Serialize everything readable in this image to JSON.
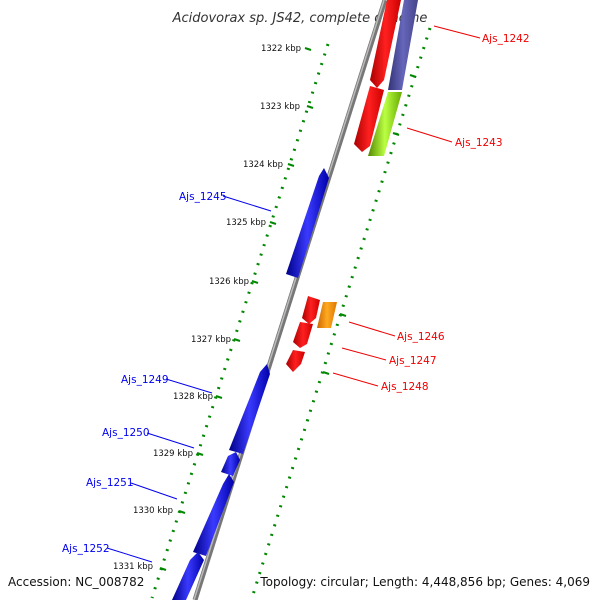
{
  "title": "Acidovorax sp. JS42, complete genome",
  "accession": "Accession: NC_008782",
  "summary": "Topology: circular; Length: 4,448,856 bp; Genes: 4,069",
  "colors": {
    "plus_strand": "#0000ee",
    "minus_strand": "#ee0000",
    "backbone": "#888888",
    "tick": "#008800"
  },
  "kbp_ticks": [
    "1322 kbp",
    "1323 kbp",
    "1324 kbp",
    "1325 kbp",
    "1326 kbp",
    "1327 kbp",
    "1328 kbp",
    "1329 kbp",
    "1330 kbp",
    "1331 kbp"
  ],
  "gene_labels": {
    "g1242": "Ajs_1242",
    "g1243": "Ajs_1243",
    "g1245": "Ajs_1245",
    "g1246": "Ajs_1246",
    "g1247": "Ajs_1247",
    "g1248": "Ajs_1248",
    "g1249": "Ajs_1249",
    "g1250": "Ajs_1250",
    "g1251": "Ajs_1251",
    "g1252": "Ajs_1252"
  }
}
